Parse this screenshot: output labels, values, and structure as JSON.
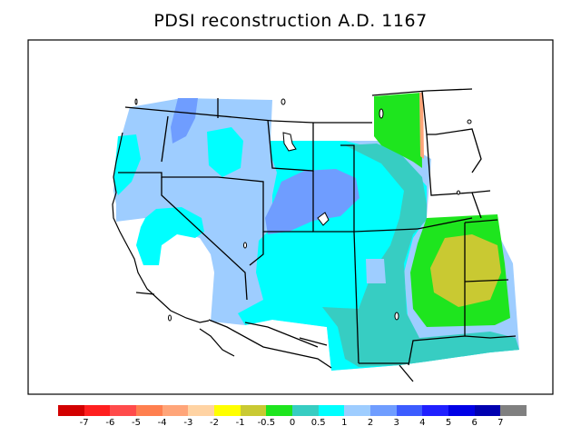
{
  "title": "PDSI reconstruction A.D. 1167",
  "legend": {
    "colors": [
      "#d20000",
      "#ff1f1f",
      "#ff4b4b",
      "#ff7f4f",
      "#ffa579",
      "#ffd3a3",
      "#ffff00",
      "#c9c932",
      "#1ee51e",
      "#37cdc2",
      "#00ffff",
      "#9ecdff",
      "#6f9dff",
      "#3c5cff",
      "#2020ff",
      "#0000e6",
      "#0000b0",
      "#808080"
    ],
    "labels": [
      "-7",
      "-6",
      "-5",
      "-4",
      "-3",
      "-2",
      "-1",
      "-0.5",
      "0",
      "0.5",
      "1",
      "2",
      "3",
      "4",
      "5",
      "6",
      "7"
    ]
  }
}
